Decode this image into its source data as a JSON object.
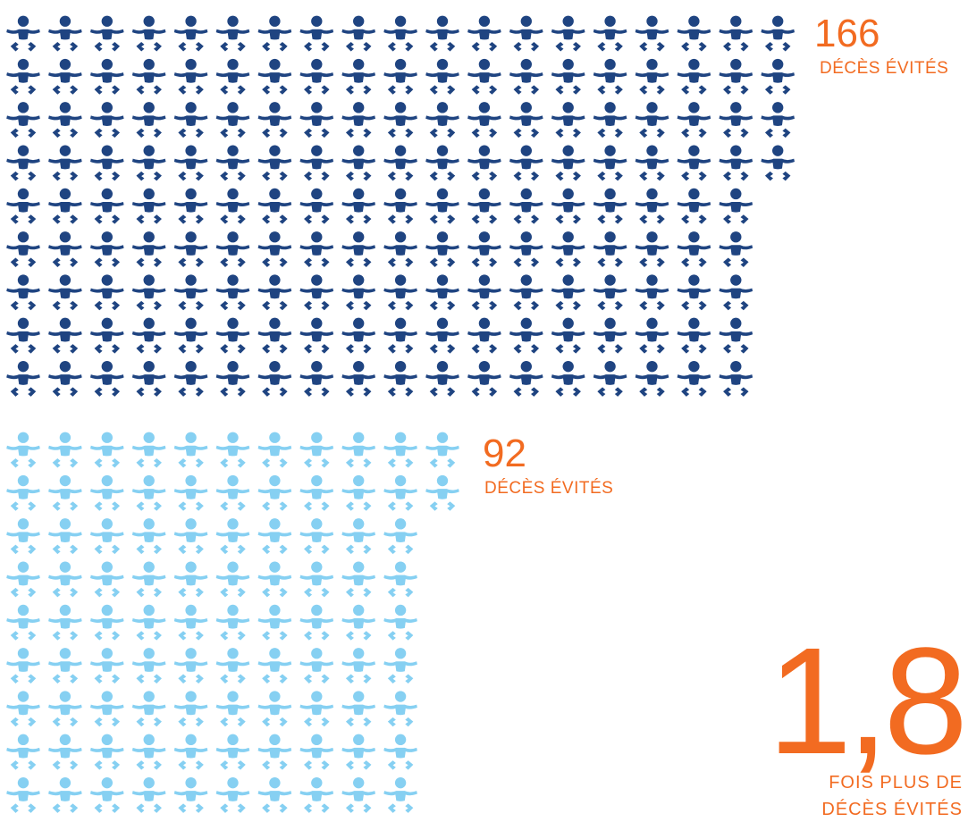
{
  "chart_data": {
    "type": "pictogram",
    "icon": "baby-icon",
    "series": [
      {
        "value": 166,
        "color": "#1f4481",
        "columns": 19
      },
      {
        "value": 92,
        "color": "#86d0f2",
        "columns": 11
      }
    ],
    "annotations": [
      {
        "number": "166",
        "label": "DÉCÈS ÉVITÉS"
      },
      {
        "number": "92",
        "label": "DÉCÈS ÉVITÉS"
      }
    ],
    "ratio": {
      "number": "1,8",
      "label_line1": "FOIS PLUS DE",
      "label_line2": "DÉCÈS ÉVITÉS"
    },
    "accent_color": "#f26b21"
  }
}
